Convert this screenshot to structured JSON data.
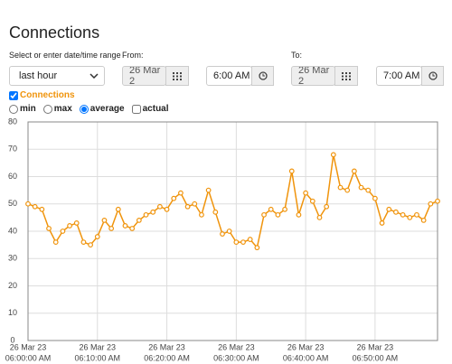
{
  "header": {
    "title": "Connections"
  },
  "range": {
    "label": "Select or enter date/time range",
    "select": "last hour"
  },
  "from": {
    "label": "From:",
    "date": "26 Mar 2",
    "time": "6:00 AM"
  },
  "to": {
    "label": "To:",
    "date": "26 Mar 2",
    "time": "7:00 AM"
  },
  "controls": {
    "series_toggle": "Connections",
    "options": [
      "min",
      "max",
      "average",
      "actual"
    ],
    "selected": "average"
  },
  "chart_data": {
    "type": "line",
    "color": "#f0940c",
    "grid": true,
    "x": [
      "06:00:00 AM",
      "06:01:00 AM",
      "06:02:00 AM",
      "06:03:00 AM",
      "06:04:00 AM",
      "06:05:00 AM",
      "06:06:00 AM",
      "06:07:00 AM",
      "06:08:00 AM",
      "06:09:00 AM",
      "06:10:00 AM",
      "06:11:00 AM",
      "06:12:00 AM",
      "06:13:00 AM",
      "06:14:00 AM",
      "06:15:00 AM",
      "06:16:00 AM",
      "06:17:00 AM",
      "06:18:00 AM",
      "06:19:00 AM",
      "06:20:00 AM",
      "06:21:00 AM",
      "06:22:00 AM",
      "06:23:00 AM",
      "06:24:00 AM",
      "06:25:00 AM",
      "06:26:00 AM",
      "06:27:00 AM",
      "06:28:00 AM",
      "06:29:00 AM",
      "06:30:00 AM",
      "06:31:00 AM",
      "06:32:00 AM",
      "06:33:00 AM",
      "06:34:00 AM",
      "06:35:00 AM",
      "06:36:00 AM",
      "06:37:00 AM",
      "06:38:00 AM",
      "06:39:00 AM",
      "06:40:00 AM",
      "06:41:00 AM",
      "06:42:00 AM",
      "06:43:00 AM",
      "06:44:00 AM",
      "06:45:00 AM",
      "06:46:00 AM",
      "06:47:00 AM",
      "06:48:00 AM",
      "06:49:00 AM",
      "06:50:00 AM",
      "06:51:00 AM",
      "06:52:00 AM",
      "06:53:00 AM",
      "06:54:00 AM",
      "06:55:00 AM",
      "06:56:00 AM",
      "06:57:00 AM",
      "06:58:00 AM",
      "06:59:00 AM"
    ],
    "values": [
      50,
      49,
      48,
      41,
      36,
      40,
      42,
      43,
      36,
      35,
      38,
      44,
      41,
      48,
      42,
      41,
      44,
      46,
      47,
      49,
      48,
      52,
      54,
      49,
      50,
      46,
      55,
      47,
      39,
      40,
      36,
      36,
      37,
      34,
      46,
      48,
      46,
      48,
      62,
      46,
      54,
      51,
      45,
      49,
      68,
      56,
      55,
      62,
      56,
      55,
      52,
      43,
      48,
      47,
      46,
      45,
      46,
      44,
      50,
      51
    ],
    "ylim": [
      0,
      80
    ],
    "yticks": [
      0,
      10,
      20,
      30,
      40,
      50,
      60,
      70,
      80
    ],
    "xticks": [
      {
        "value": "06:00:00 AM",
        "label": [
          "26 Mar 23",
          "06:00:00 AM"
        ]
      },
      {
        "value": "06:10:00 AM",
        "label": [
          "26 Mar 23",
          "06:10:00 AM"
        ]
      },
      {
        "value": "06:20:00 AM",
        "label": [
          "26 Mar 23",
          "06:20:00 AM"
        ]
      },
      {
        "value": "06:30:00 AM",
        "label": [
          "26 Mar 23",
          "06:30:00 AM"
        ]
      },
      {
        "value": "06:40:00 AM",
        "label": [
          "26 Mar 23",
          "06:40:00 AM"
        ]
      },
      {
        "value": "06:50:00 AM",
        "label": [
          "26 Mar 23",
          "06:50:00 AM"
        ]
      }
    ]
  }
}
